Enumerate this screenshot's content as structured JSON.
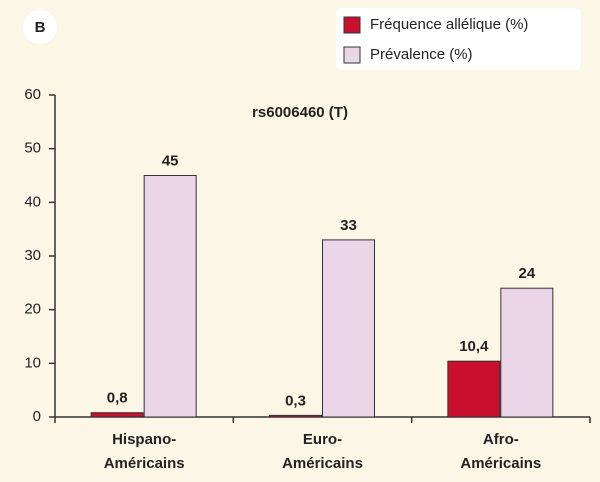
{
  "panel_label": "B",
  "chart_data": {
    "type": "bar",
    "title": "rs6006460 (T)",
    "categories": [
      [
        "Hispano-",
        "Américains"
      ],
      [
        "Euro-",
        "Américains"
      ],
      [
        "Afro-",
        "Américains"
      ]
    ],
    "series": [
      {
        "name": "Fréquence allélique (%)",
        "color": "#c8102e",
        "values": [
          0.8,
          0.3,
          10.4
        ],
        "value_labels": [
          "0,8",
          "0,3",
          "10,4"
        ]
      },
      {
        "name": "Prévalence (%)",
        "color": "#ead6e8",
        "values": [
          45,
          33,
          24
        ]
      }
    ],
    "ylim": [
      0,
      60
    ],
    "yticks": [
      0,
      10,
      20,
      30,
      40,
      50,
      60
    ],
    "legend": "top-right"
  }
}
